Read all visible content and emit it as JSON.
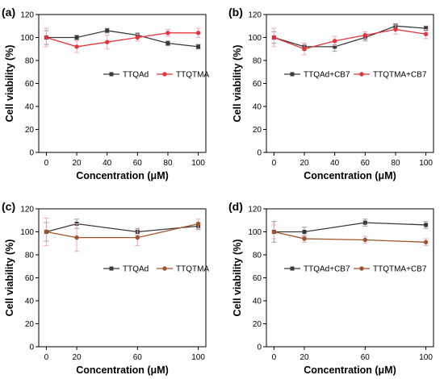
{
  "chart_data": [
    {
      "type": "line",
      "panel": "(a)",
      "xlabel": "Concentration (μM)",
      "ylabel": "Cell viability (%)",
      "xlim": [
        -5,
        105
      ],
      "ylim": [
        0,
        120
      ],
      "xticks": [
        0,
        20,
        40,
        60,
        80,
        100
      ],
      "yticks": [
        0,
        20,
        40,
        60,
        80,
        100,
        120
      ],
      "legend": "center-right",
      "grid": false,
      "series": [
        {
          "name": "TTQAd",
          "color": "#3a3a3a",
          "marker": "square",
          "x": [
            0,
            20,
            40,
            60,
            80,
            100
          ],
          "y": [
            100,
            100,
            106,
            102,
            95,
            92
          ],
          "err": [
            6,
            2,
            2,
            2,
            2,
            2
          ]
        },
        {
          "name": "TTQTMA",
          "color": "#e8333a",
          "marker": "circle",
          "x": [
            0,
            20,
            40,
            60,
            80,
            100
          ],
          "y": [
            100,
            92,
            96,
            100,
            104,
            104
          ],
          "err": [
            8,
            5,
            6,
            3,
            3,
            4
          ]
        }
      ]
    },
    {
      "type": "line",
      "panel": "(b)",
      "xlabel": "Concentration (μM)",
      "ylabel": "Cell viability (%)",
      "xlim": [
        -5,
        105
      ],
      "ylim": [
        0,
        120
      ],
      "xticks": [
        0,
        20,
        40,
        60,
        80,
        100
      ],
      "yticks": [
        0,
        20,
        40,
        60,
        80,
        100,
        120
      ],
      "legend": "center-right",
      "grid": false,
      "series": [
        {
          "name": "TTQAd+CB7",
          "color": "#3a3a3a",
          "marker": "square",
          "x": [
            0,
            20,
            40,
            60,
            80,
            100
          ],
          "y": [
            100,
            92,
            92,
            100,
            110,
            108
          ],
          "err": [
            5,
            3,
            4,
            3,
            2,
            2
          ]
        },
        {
          "name": "TTQTMA+CB7",
          "color": "#e8333a",
          "marker": "circle",
          "x": [
            0,
            20,
            40,
            60,
            80,
            100
          ],
          "y": [
            100,
            90,
            97,
            102,
            107,
            103
          ],
          "err": [
            8,
            5,
            4,
            3,
            4,
            4
          ]
        }
      ]
    },
    {
      "type": "line",
      "panel": "(c)",
      "xlabel": "Concentration (μM)",
      "ylabel": "Cell viability (%)",
      "xlim": [
        -5,
        105
      ],
      "ylim": [
        0,
        120
      ],
      "xticks": [
        0,
        20,
        60,
        100
      ],
      "yticks": [
        0,
        20,
        40,
        60,
        80,
        100,
        120
      ],
      "legend": "center-right",
      "grid": false,
      "series": [
        {
          "name": "TTQAd",
          "color": "#3a3a3a",
          "marker": "square",
          "x": [
            0,
            20,
            60,
            100
          ],
          "y": [
            100,
            107,
            100,
            105
          ],
          "err": [
            8,
            4,
            3,
            3
          ]
        },
        {
          "name": "TTQTMA",
          "color": "#a0522d",
          "marker": "circle",
          "x": [
            0,
            20,
            60,
            100
          ],
          "y": [
            100,
            95,
            95,
            107
          ],
          "err": [
            12,
            12,
            7,
            4
          ]
        }
      ]
    },
    {
      "type": "line",
      "panel": "(d)",
      "xlabel": "Concentration (μM)",
      "ylabel": "Cell viability (%)",
      "xlim": [
        -5,
        105
      ],
      "ylim": [
        0,
        120
      ],
      "xticks": [
        0,
        20,
        60,
        100
      ],
      "yticks": [
        0,
        20,
        40,
        60,
        80,
        100,
        120
      ],
      "legend": "center-right",
      "grid": false,
      "series": [
        {
          "name": "TTQAd+CB7",
          "color": "#3a3a3a",
          "marker": "square",
          "x": [
            0,
            20,
            60,
            100
          ],
          "y": [
            100,
            100,
            108,
            106
          ],
          "err": [
            9,
            4,
            3,
            3
          ]
        },
        {
          "name": "TTQTMA+CB7",
          "color": "#a0522d",
          "marker": "circle",
          "x": [
            0,
            20,
            60,
            100
          ],
          "y": [
            100,
            94,
            93,
            91
          ],
          "err": [
            6,
            3,
            3,
            3
          ]
        }
      ]
    }
  ]
}
